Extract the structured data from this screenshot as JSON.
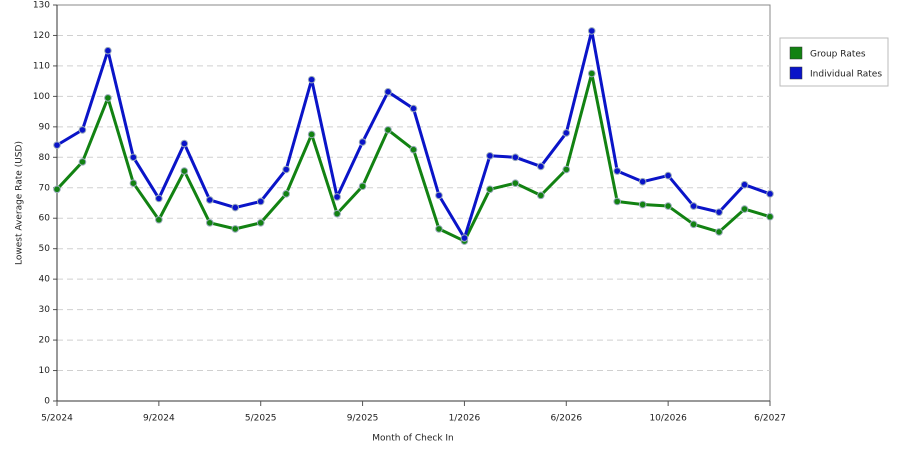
{
  "chart_data": {
    "type": "line",
    "x_label": "Month of Check In",
    "y_label": "Lowest Average Rate (USD)",
    "categories": [
      "5/2024",
      null,
      null,
      null,
      "9/2024",
      null,
      null,
      null,
      "5/2025",
      null,
      null,
      null,
      "9/2025",
      null,
      null,
      null,
      "1/2026",
      null,
      null,
      null,
      "6/2026",
      null,
      null,
      null,
      "10/2026",
      null,
      null,
      null,
      "6/2027"
    ],
    "series": [
      {
        "name": "Group Rates",
        "color": "#128212",
        "values": [
          69.5,
          78.5,
          99.5,
          71.5,
          59.5,
          75.5,
          58.5,
          56.5,
          58.5,
          68,
          87.5,
          61.5,
          70.5,
          89,
          82.5,
          56.5,
          52.5,
          69.5,
          71.5,
          67.5,
          76,
          107.5,
          65.5,
          64.5,
          64,
          58,
          55.5,
          63,
          60.5
        ]
      },
      {
        "name": "Individual Rates",
        "color": "#0a14c8",
        "values": [
          84,
          89,
          115,
          80,
          66.5,
          84.5,
          66,
          63.5,
          65.5,
          76,
          105.5,
          67,
          85,
          101.5,
          96,
          67.5,
          53.5,
          80.5,
          80,
          77,
          88,
          121.5,
          75.5,
          72,
          74,
          64,
          62,
          71,
          68
        ]
      }
    ],
    "ylim": [
      0,
      130
    ],
    "yticks": [
      0,
      10,
      20,
      30,
      40,
      50,
      60,
      70,
      80,
      90,
      100,
      110,
      120,
      130
    ],
    "grid": true,
    "legend": "right"
  }
}
